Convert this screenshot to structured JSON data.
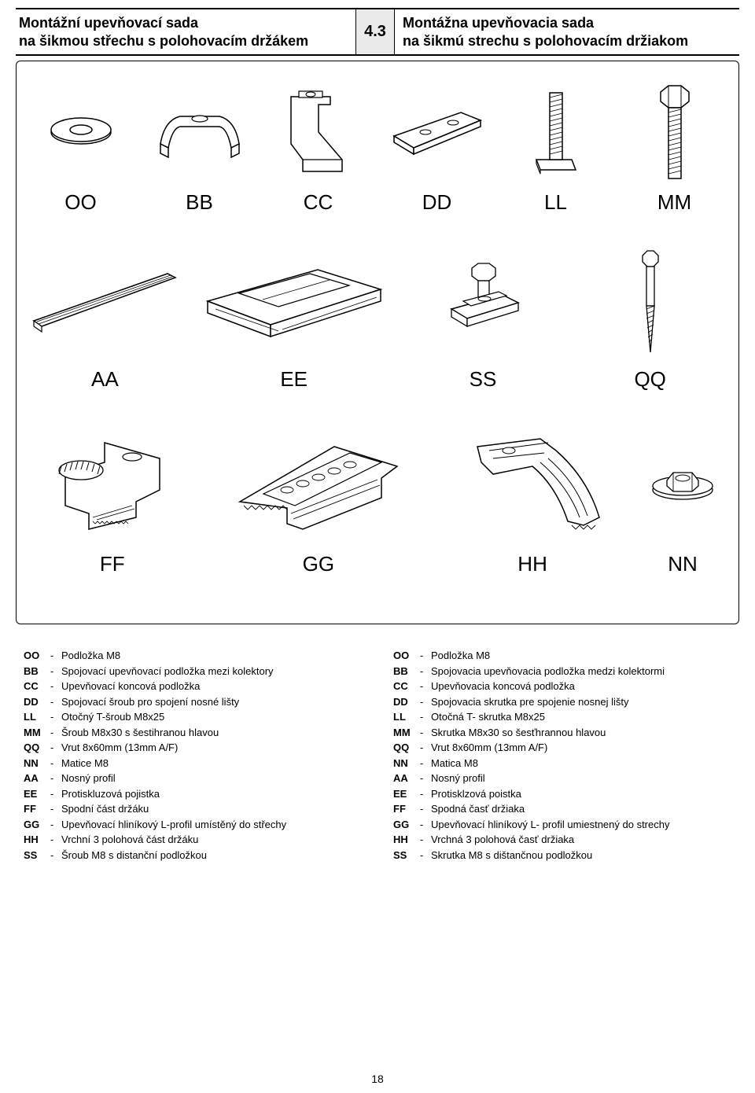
{
  "header": {
    "left_line1": "Montážní upevňovací sada",
    "left_line2": "na šikmou střechu s polohovacím držákem",
    "number": "4.3",
    "right_line1": "Montážna upevňovacia sada",
    "right_line2": "na šikmú strechu s polohovacím držiakom"
  },
  "row1": {
    "labels": [
      "OO",
      "BB",
      "CC",
      "DD",
      "LL",
      "MM"
    ]
  },
  "row2": {
    "labels": [
      "AA",
      "EE",
      "SS",
      "QQ"
    ]
  },
  "row3": {
    "labels": [
      "FF",
      "GG",
      "HH",
      "NN"
    ]
  },
  "legend_left": [
    {
      "code": "OO",
      "text": "Podložka M8"
    },
    {
      "code": "BB",
      "text": "Spojovací upevňovací podložka mezi kolektory"
    },
    {
      "code": "CC",
      "text": "Upevňovací koncová podložka"
    },
    {
      "code": "DD",
      "text": "Spojovací šroub pro spojení nosné lišty"
    },
    {
      "code": "LL",
      "text": "Otočný T-šroub M8x25"
    },
    {
      "code": "MM",
      "text": "Šroub M8x30 s šestihranou hlavou"
    },
    {
      "code": "QQ",
      "text": "Vrut 8x60mm (13mm A/F)"
    },
    {
      "code": "NN",
      "text": "Matice M8"
    },
    {
      "code": "AA",
      "text": "Nosný profil"
    },
    {
      "code": "EE",
      "text": "Protiskluzová pojistka"
    },
    {
      "code": "FF",
      "text": "Spodní část držáku"
    },
    {
      "code": "GG",
      "text": "Upevňovací hliníkový L-profil umístěný do střechy"
    },
    {
      "code": "HH",
      "text": "Vrchní 3 polohová část držáku"
    },
    {
      "code": "SS",
      "text": "Šroub M8 s distanční podložkou"
    }
  ],
  "legend_right": [
    {
      "code": "OO",
      "text": "Podložka M8"
    },
    {
      "code": "BB",
      "text": "Spojovacia upevňovacia podložka medzi kolektormi"
    },
    {
      "code": "CC",
      "text": "Upevňovacia koncová podložka"
    },
    {
      "code": "DD",
      "text": "Spojovacia skrutka pre spojenie nosnej lišty"
    },
    {
      "code": "LL",
      "text": "Otočná T- skrutka M8x25"
    },
    {
      "code": "MM",
      "text": "Skrutka M8x30 so šesťhrannou hlavou"
    },
    {
      "code": "QQ",
      "text": "Vrut 8x60mm (13mm A/F)"
    },
    {
      "code": "NN",
      "text": "Matica M8"
    },
    {
      "code": "AA",
      "text": "Nosný profil"
    },
    {
      "code": "EE",
      "text": "Protisklzová poistka"
    },
    {
      "code": "FF",
      "text": "Spodná časť držiaka"
    },
    {
      "code": "GG",
      "text": "Upevňovací hliníkový L- profil umiestnený do strechy"
    },
    {
      "code": "HH",
      "text": "Vrchná 3 polohová časť držiaka"
    },
    {
      "code": "SS",
      "text": "Skrutka M8 s dištančnou podložkou"
    }
  ],
  "page_number": "18"
}
